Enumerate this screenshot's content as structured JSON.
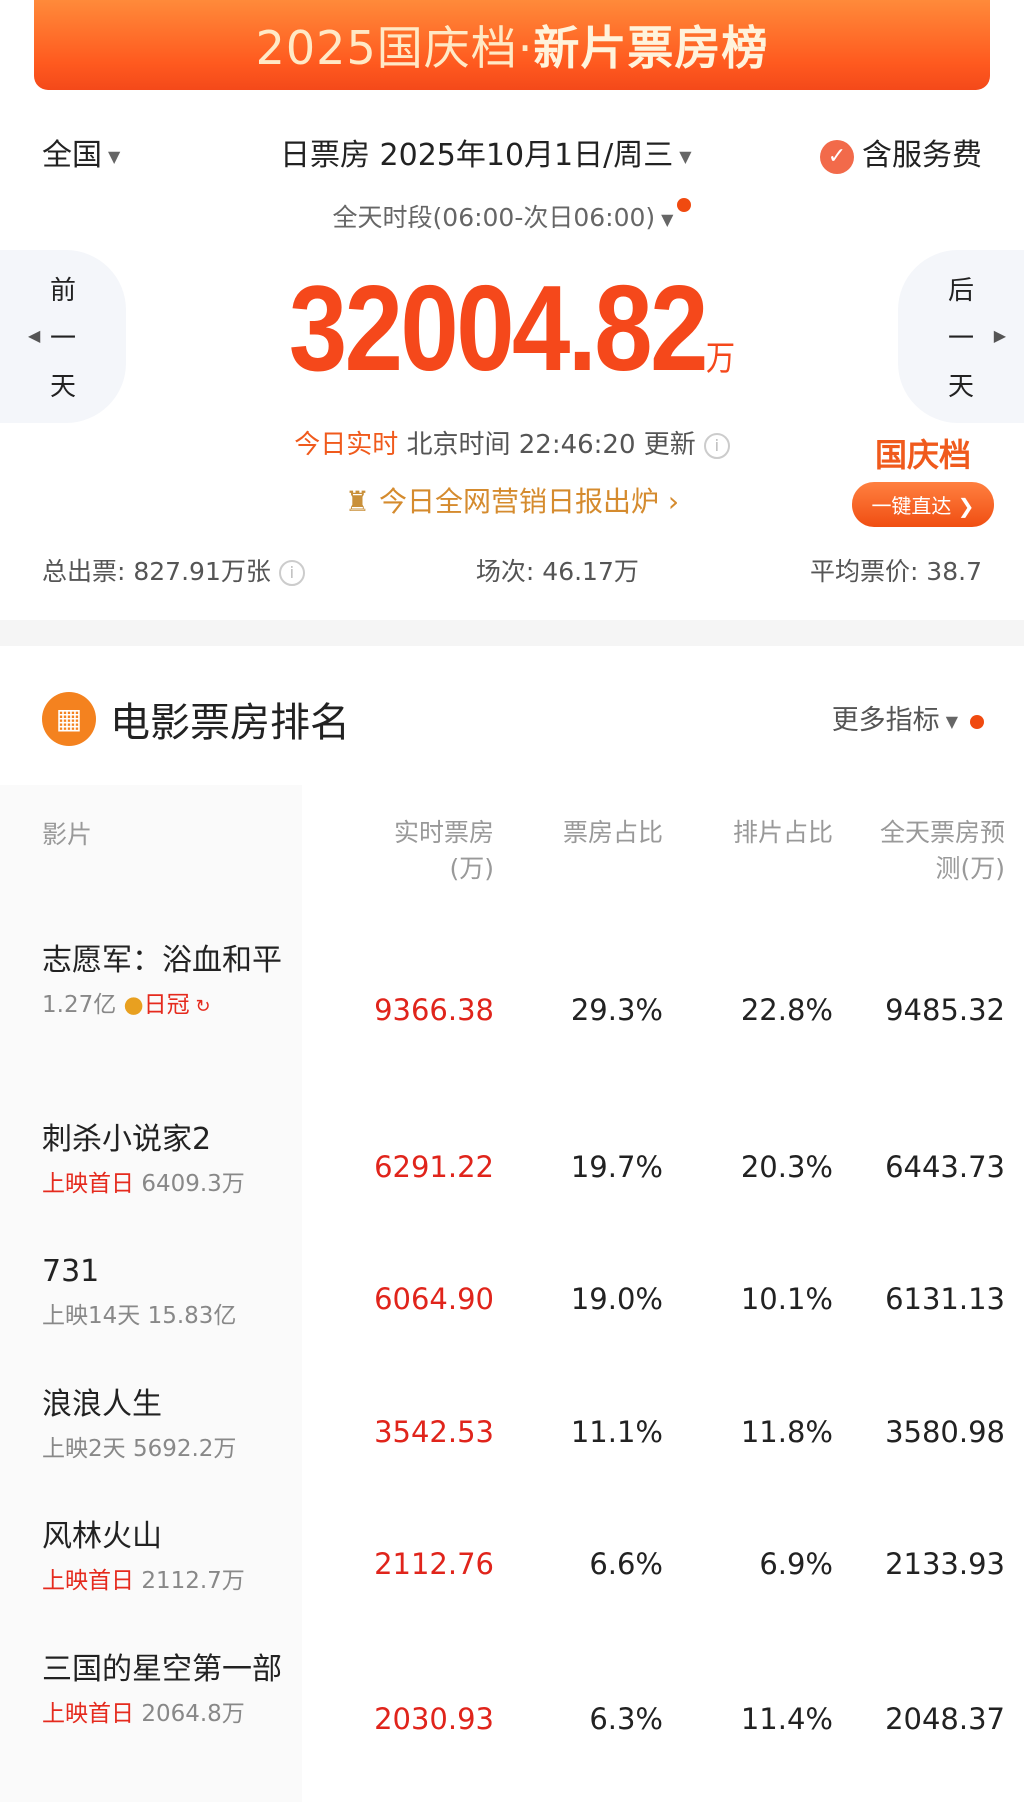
{
  "banner": {
    "title_a": "2025国庆档·",
    "title_b": "新片票房榜"
  },
  "filters": {
    "region": "全国",
    "date": "日票房 2025年10月1日/周三",
    "service_fee": "含服务费",
    "time_range": "全天时段(06:00-次日06:00)"
  },
  "nav": {
    "prev": [
      "前",
      "一",
      "天"
    ],
    "next": [
      "后",
      "一",
      "天"
    ]
  },
  "total": {
    "value": "32004.82",
    "unit": "万"
  },
  "update": {
    "label": "今日实时",
    "text": "北京时间 22:46:20 更新"
  },
  "marketing": {
    "text": "今日全网营销日报出炉",
    "arrow": "›"
  },
  "promo": {
    "title": "国庆档",
    "button": "一键直达"
  },
  "stats": {
    "tickets": "总出票: 827.91万张",
    "shows": "场次: 46.17万",
    "avg_price": "平均票价: 38.7"
  },
  "section": {
    "title": "电影票房排名",
    "more": "更多指标"
  },
  "columns": {
    "film": "影片",
    "realtime": "实时票房",
    "realtime_unit": "(万)",
    "share": "票房占比",
    "screening": "排片占比",
    "forecast": "全天票房预",
    "forecast_unit": "测(万)"
  },
  "colors": {
    "accent": "#f5481b",
    "red": "#e0241b"
  },
  "movies": [
    {
      "name": "志愿军：浴血和平",
      "sub_gray": "1.27亿",
      "badge": "日冠",
      "realtime": "9366.38",
      "share": "29.3%",
      "screening": "22.8%",
      "forecast": "9485.32"
    },
    {
      "name": "刺杀小说家2",
      "sub_red": "上映首日",
      "sub_gray": "6409.3万",
      "realtime": "6291.22",
      "share": "19.7%",
      "screening": "20.3%",
      "forecast": "6443.73"
    },
    {
      "name": "731",
      "sub_gray": "上映14天 15.83亿",
      "realtime": "6064.90",
      "share": "19.0%",
      "screening": "10.1%",
      "forecast": "6131.13"
    },
    {
      "name": "浪浪人生",
      "sub_gray": "上映2天 5692.2万",
      "realtime": "3542.53",
      "share": "11.1%",
      "screening": "11.8%",
      "forecast": "3580.98"
    },
    {
      "name": "风林火山",
      "sub_red": "上映首日",
      "sub_gray": "2112.7万",
      "realtime": "2112.76",
      "share": "6.6%",
      "screening": "6.9%",
      "forecast": "2133.93"
    },
    {
      "name": "三国的星空第一部",
      "sub_red": "上映首日",
      "sub_gray": "2064.8万",
      "realtime": "2030.93",
      "share": "6.3%",
      "screening": "11.4%",
      "forecast": "2048.37"
    }
  ]
}
